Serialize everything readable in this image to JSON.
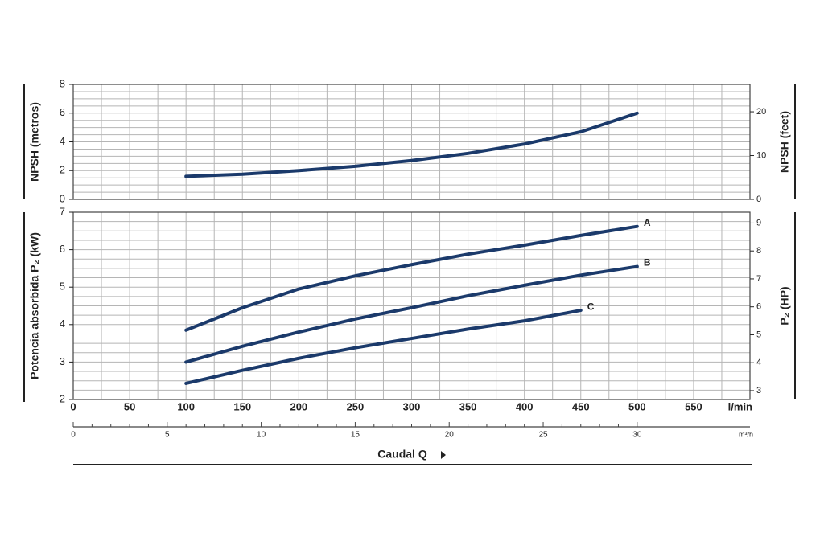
{
  "chart_data": [
    {
      "type": "line",
      "ylabel": "NPSH (metros)",
      "y2label": "NPSH (feet)",
      "x": [
        100,
        150,
        200,
        250,
        300,
        350,
        400,
        450,
        500
      ],
      "series": [
        {
          "color": "#1b3a6b",
          "values": [
            1.6,
            1.75,
            2.0,
            2.3,
            2.7,
            3.2,
            3.85,
            4.7,
            6.0
          ]
        }
      ],
      "xlim": [
        0,
        600
      ],
      "ylim": [
        0,
        8
      ],
      "yticks": [
        0,
        2,
        4,
        6,
        8
      ],
      "y2lim": [
        0,
        26.25
      ],
      "y2ticks": [
        0,
        10,
        20
      ],
      "grid": true
    },
    {
      "type": "line",
      "ylabel": "Potencia absorbida P₂ (kW)",
      "y2label": "P₂ (HP)",
      "xlabel": "l/min",
      "x2label": "m³/h",
      "axis_title": "Caudal Q",
      "x": [
        100,
        150,
        200,
        250,
        300,
        350,
        400,
        450,
        500
      ],
      "series": [
        {
          "name": "A",
          "color": "#1b3a6b",
          "values": [
            3.85,
            4.45,
            4.95,
            5.3,
            5.6,
            5.88,
            6.12,
            6.38,
            6.62
          ]
        },
        {
          "name": "B",
          "color": "#1b3a6b",
          "values": [
            3.0,
            3.42,
            3.8,
            4.15,
            4.45,
            4.77,
            5.05,
            5.32,
            5.55
          ]
        },
        {
          "name": "C",
          "color": "#1b3a6b",
          "values": [
            2.43,
            2.78,
            3.1,
            3.38,
            3.63,
            3.88,
            4.1,
            4.38,
            null
          ]
        }
      ],
      "xlim": [
        0,
        600
      ],
      "xticks": [
        0,
        50,
        100,
        150,
        200,
        250,
        300,
        350,
        400,
        450,
        500,
        550
      ],
      "x2lim": [
        0,
        36
      ],
      "x2ticks": [
        0,
        5,
        10,
        15,
        20,
        25,
        30
      ],
      "ylim": [
        2,
        7
      ],
      "yticks": [
        2,
        3,
        4,
        5,
        6,
        7
      ],
      "y2lim": [
        2.682,
        9.387
      ],
      "y2ticks": [
        3,
        4,
        5,
        6,
        7,
        8,
        9
      ],
      "grid": true
    }
  ]
}
